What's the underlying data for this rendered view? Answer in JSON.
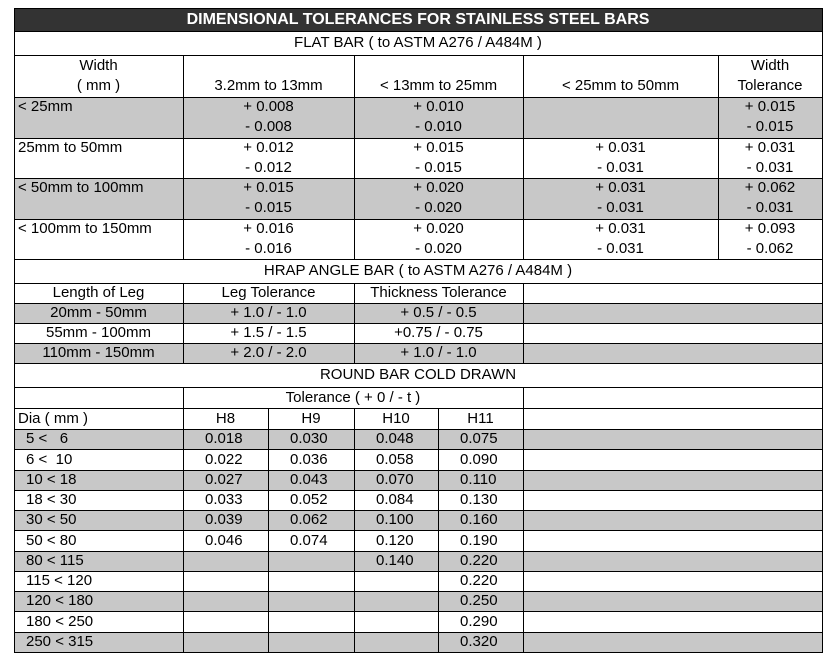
{
  "title": "DIMENSIONAL TOLERANCES FOR STAINLESS STEEL BARS",
  "flat_bar": {
    "title": "FLAT BAR ( to ASTM A276 / A484M )",
    "header": [
      [
        "Width",
        "( mm )"
      ],
      "3.2mm to 13mm",
      "< 13mm to 25mm",
      "< 25mm to 50mm",
      [
        "Width",
        "Tolerance"
      ]
    ],
    "rows": [
      {
        "width": "< 25mm",
        "cells": [
          [
            "+ 0.008",
            "- 0.008"
          ],
          [
            "+ 0.010",
            "- 0.010"
          ],
          null,
          [
            "+ 0.015",
            "- 0.015"
          ]
        ]
      },
      {
        "width": "25mm to 50mm",
        "cells": [
          [
            "+ 0.012",
            "- 0.012"
          ],
          [
            "+ 0.015",
            "- 0.015"
          ],
          [
            "+ 0.031",
            "- 0.031"
          ],
          [
            "+ 0.031",
            "- 0.031"
          ]
        ]
      },
      {
        "width": "< 50mm to 100mm",
        "cells": [
          [
            "+ 0.015",
            "- 0.015"
          ],
          [
            "+ 0.020",
            "- 0.020"
          ],
          [
            "+ 0.031",
            "- 0.031"
          ],
          [
            "+ 0.062",
            "- 0.031"
          ]
        ]
      },
      {
        "width": "< 100mm to 150mm",
        "cells": [
          [
            "+ 0.016",
            "- 0.016"
          ],
          [
            "+ 0.020",
            "- 0.020"
          ],
          [
            "+ 0.031",
            "- 0.031"
          ],
          [
            "+ 0.093",
            "- 0.062"
          ]
        ]
      }
    ]
  },
  "angle_bar": {
    "title": "HRAP ANGLE BAR ( to ASTM A276 / A484M )",
    "header": [
      "Length of Leg",
      "Leg Tolerance",
      "Thickness Tolerance"
    ],
    "rows": [
      [
        "20mm - 50mm",
        "+ 1.0 / - 1.0",
        "+ 0.5 / - 0.5"
      ],
      [
        "55mm - 100mm",
        "+ 1.5 / - 1.5",
        "+0.75 / - 0.75"
      ],
      [
        "110mm - 150mm",
        "+ 2.0 / - 2.0",
        "+ 1.0 / - 1.0"
      ]
    ]
  },
  "round_bar": {
    "title": "ROUND BAR COLD DRAWN",
    "tolerance": "Tolerance ( + 0 / - t )",
    "header": [
      "Dia ( mm )",
      "H8",
      "H9",
      "H10",
      "H11"
    ],
    "rows": [
      [
        "5 <   6",
        "0.018",
        "0.030",
        "0.048",
        "0.075"
      ],
      [
        "6 <  10",
        "0.022",
        "0.036",
        "0.058",
        "0.090"
      ],
      [
        "10 < 18",
        "0.027",
        "0.043",
        "0.070",
        "0.110"
      ],
      [
        "18 < 30",
        "0.033",
        "0.052",
        "0.084",
        "0.130"
      ],
      [
        "30 < 50",
        "0.039",
        "0.062",
        "0.100",
        "0.160"
      ],
      [
        "50 < 80",
        "0.046",
        "0.074",
        "0.120",
        "0.190"
      ],
      [
        "80 < 115",
        null,
        null,
        "0.140",
        "0.220"
      ],
      [
        "115 < 120",
        null,
        null,
        null,
        "0.220"
      ],
      [
        "120 < 180",
        null,
        null,
        null,
        "0.250"
      ],
      [
        "180 < 250",
        null,
        null,
        null,
        "0.290"
      ],
      [
        "250 < 315",
        null,
        null,
        null,
        "0.320"
      ]
    ]
  }
}
